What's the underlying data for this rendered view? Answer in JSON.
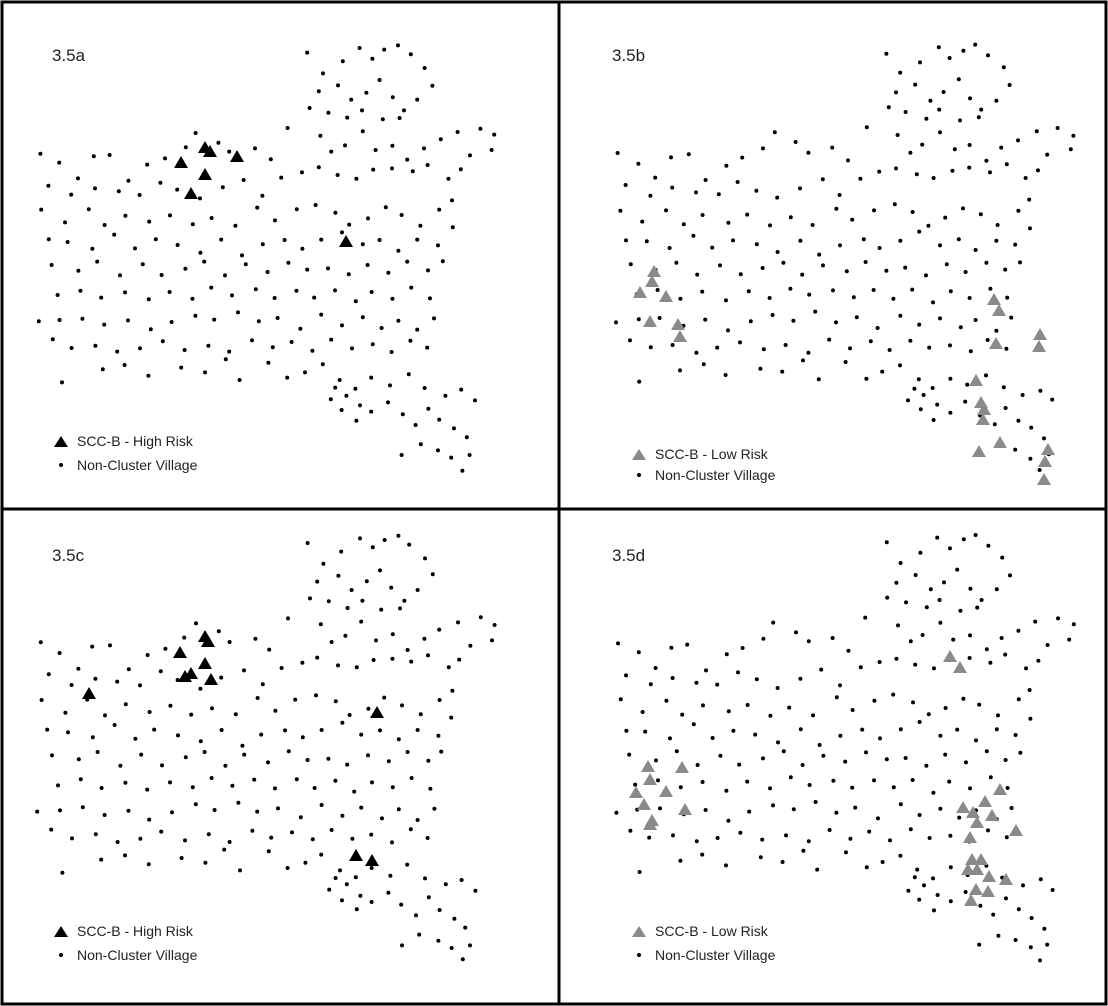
{
  "figure": {
    "panels": [
      {
        "id": "3.5a",
        "label": "3.5a",
        "legend": {
          "cluster_label": "SCC-B - High Risk",
          "village_label": "Non-Cluster Village",
          "cluster_color": "#000000"
        }
      },
      {
        "id": "3.5b",
        "label": "3.5b",
        "legend": {
          "cluster_label": "SCC-B - Low Risk",
          "village_label": "Non-Cluster Village",
          "cluster_color": "#8a8a8a"
        }
      },
      {
        "id": "3.5c",
        "label": "3.5c",
        "legend": {
          "cluster_label": "SCC-B - High Risk",
          "village_label": "Non-Cluster Village",
          "cluster_color": "#000000"
        }
      },
      {
        "id": "3.5d",
        "label": "3.5d",
        "legend": {
          "cluster_label": "SCC-B - Low Risk",
          "village_label": "Non-Cluster Village",
          "cluster_color": "#8a8a8a"
        }
      }
    ],
    "colors": {
      "village_dot": "#000000",
      "high_risk": "#000000",
      "low_risk": "#8a8a8a",
      "border": "#000000"
    }
  }
}
